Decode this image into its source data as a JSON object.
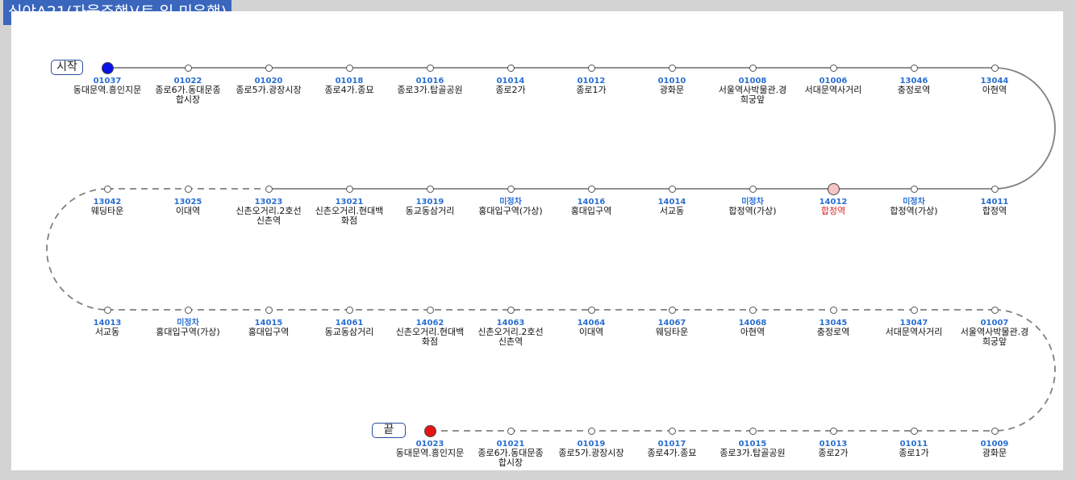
{
  "title": "심야A21(자율주행)(토,일 미운행)",
  "start_label": "시작",
  "end_label": "끝",
  "colors": {
    "title_bg": "#3a67bd",
    "stop_id": "#2a6fd2",
    "start_node": "#0a12e6",
    "end_node": "#e81414",
    "highlight_node": "#f7c4c4",
    "highlight_name": "#e51a1a"
  },
  "rows": [
    {
      "stops": [
        {
          "id": "01037",
          "name": "동대문역.흥인지문",
          "type": "start"
        },
        {
          "id": "01022",
          "name": "종로6가.동대문종합시장"
        },
        {
          "id": "01020",
          "name": "종로5가.광장시장"
        },
        {
          "id": "01018",
          "name": "종로4가.종묘"
        },
        {
          "id": "01016",
          "name": "종로3가.탑골공원"
        },
        {
          "id": "01014",
          "name": "종로2가"
        },
        {
          "id": "01012",
          "name": "종로1가"
        },
        {
          "id": "01010",
          "name": "광화문"
        },
        {
          "id": "01008",
          "name": "서울역사박물관.경희궁앞"
        },
        {
          "id": "01006",
          "name": "서대문역사거리"
        },
        {
          "id": "13046",
          "name": "충정로역"
        },
        {
          "id": "13044",
          "name": "아현역"
        }
      ]
    },
    {
      "stops": [
        {
          "id": "14011",
          "name": "합정역"
        },
        {
          "id": "미정차",
          "name": "합정역(가상)"
        },
        {
          "id": "14012",
          "name": "합정역",
          "type": "highlight"
        },
        {
          "id": "미정차",
          "name": "합정역(가상)"
        },
        {
          "id": "14014",
          "name": "서교동"
        },
        {
          "id": "14016",
          "name": "홍대입구역"
        },
        {
          "id": "미정차",
          "name": "홍대입구역(가상)"
        },
        {
          "id": "13019",
          "name": "동교동삼거리"
        },
        {
          "id": "13021",
          "name": "신촌오거리.현대백화점"
        },
        {
          "id": "13023",
          "name": "신촌오거리.2호선신촌역"
        },
        {
          "id": "13025",
          "name": "이대역"
        },
        {
          "id": "13042",
          "name": "웨딩타운"
        }
      ]
    },
    {
      "stops": [
        {
          "id": "14013",
          "name": "서교동"
        },
        {
          "id": "미정차",
          "name": "홍대입구역(가상)"
        },
        {
          "id": "14015",
          "name": "홍대입구역"
        },
        {
          "id": "14061",
          "name": "동교동삼거리"
        },
        {
          "id": "14062",
          "name": "신촌오거리.현대백화점"
        },
        {
          "id": "14063",
          "name": "신촌오거리.2호선신촌역"
        },
        {
          "id": "14064",
          "name": "이대역"
        },
        {
          "id": "14067",
          "name": "웨딩타운"
        },
        {
          "id": "14068",
          "name": "아현역"
        },
        {
          "id": "13045",
          "name": "충정로역"
        },
        {
          "id": "13047",
          "name": "서대문역사거리"
        },
        {
          "id": "01007",
          "name": "서울역사박물관.경희궁앞"
        }
      ]
    },
    {
      "stops": [
        {
          "id": "01023",
          "name": "동대문역.흥인지문",
          "type": "end"
        },
        {
          "id": "01021",
          "name": "종로6가.동대문종합시장"
        },
        {
          "id": "01019",
          "name": "종로5가.광장시장"
        },
        {
          "id": "01017",
          "name": "종로4가.종묘"
        },
        {
          "id": "01015",
          "name": "종로3가.탑골공원"
        },
        {
          "id": "01013",
          "name": "종로2가"
        },
        {
          "id": "01011",
          "name": "종로1가"
        },
        {
          "id": "01009",
          "name": "광화문"
        }
      ]
    }
  ]
}
